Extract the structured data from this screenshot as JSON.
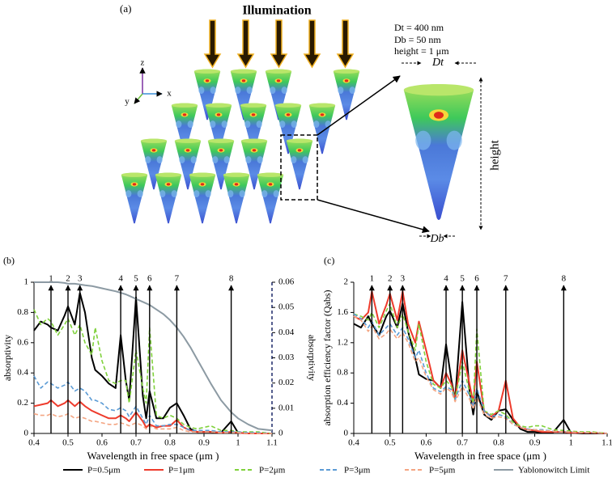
{
  "diagram": {
    "label": "(a)",
    "title": "Illumination",
    "dt_spec": "Dt = 400 nm",
    "db_spec": "Db = 50 nm",
    "height_spec": "height = 1 μm",
    "dt_label": "Dt",
    "db_label": "Db",
    "height_label": "height",
    "axis_x": "x",
    "axis_y": "y",
    "axis_z": "z"
  },
  "chart_data": [
    {
      "type": "line",
      "panel": "(b)",
      "xlabel": "Wavelength in free space (μm )",
      "ylabel": "absorptivity",
      "y2label": "absorptivity",
      "xlim": [
        0.4,
        1.1
      ],
      "xticks": [
        0.4,
        0.5,
        0.6,
        0.7,
        0.8,
        0.9,
        1,
        1.1
      ],
      "ylim": [
        0,
        1
      ],
      "yticks": [
        0,
        0.2,
        0.4,
        0.6,
        0.8,
        1
      ],
      "y2lim": [
        0,
        0.06
      ],
      "y2ticks": [
        0,
        0.01,
        0.02,
        0.03,
        0.04,
        0.05,
        0.06
      ],
      "annotations": [
        {
          "x": 0.45,
          "label": "1"
        },
        {
          "x": 0.5,
          "label": "2"
        },
        {
          "x": 0.535,
          "label": "3"
        },
        {
          "x": 0.655,
          "label": "4"
        },
        {
          "x": 0.7,
          "label": "5"
        },
        {
          "x": 0.74,
          "label": "6"
        },
        {
          "x": 0.82,
          "label": "7"
        },
        {
          "x": 0.98,
          "label": "8"
        }
      ],
      "x": [
        0.4,
        0.42,
        0.44,
        0.45,
        0.47,
        0.49,
        0.5,
        0.52,
        0.535,
        0.55,
        0.57,
        0.58,
        0.6,
        0.62,
        0.64,
        0.655,
        0.67,
        0.68,
        0.7,
        0.72,
        0.73,
        0.74,
        0.76,
        0.78,
        0.8,
        0.82,
        0.84,
        0.86,
        0.88,
        0.9,
        0.92,
        0.95,
        0.98,
        1.0,
        1.03,
        1.06,
        1.1
      ],
      "series": [
        {
          "name": "P=0.5μm",
          "color": "#000000",
          "dashed": false,
          "values": [
            0.68,
            0.74,
            0.72,
            0.7,
            0.68,
            0.78,
            0.84,
            0.72,
            0.93,
            0.8,
            0.5,
            0.42,
            0.38,
            0.33,
            0.3,
            0.65,
            0.35,
            0.22,
            0.9,
            0.25,
            0.1,
            0.28,
            0.1,
            0.1,
            0.17,
            0.2,
            0.12,
            0.03,
            0.01,
            0.01,
            0.01,
            0.005,
            0.08,
            0.005,
            0,
            0,
            0
          ]
        },
        {
          "name": "P=1μm",
          "color": "#ee3b2c",
          "dashed": false,
          "values": [
            0.18,
            0.19,
            0.2,
            0.22,
            0.18,
            0.2,
            0.22,
            0.18,
            0.21,
            0.18,
            0.15,
            0.14,
            0.12,
            0.1,
            0.1,
            0.12,
            0.1,
            0.08,
            0.14,
            0.08,
            0.04,
            0.06,
            0.04,
            0.05,
            0.05,
            0.09,
            0.04,
            0.02,
            0.01,
            0.01,
            0.01,
            0.005,
            0.01,
            0.005,
            0,
            0,
            0
          ]
        },
        {
          "name": "P=2μm",
          "color": "#7fd13b",
          "dashed": true,
          "values": [
            0.82,
            0.72,
            0.76,
            0.74,
            0.65,
            0.72,
            0.76,
            0.65,
            0.72,
            0.6,
            0.52,
            0.7,
            0.48,
            0.35,
            0.33,
            0.35,
            0.35,
            0.2,
            0.55,
            0.3,
            0.2,
            0.7,
            0.12,
            0.1,
            0.12,
            0.1,
            0.06,
            0.04,
            0.03,
            0.04,
            0.05,
            0.02,
            0.02,
            0.01,
            0.01,
            0.01,
            0
          ]
        },
        {
          "name": "P=3μm",
          "color": "#5b9bd5",
          "dashed": true,
          "values": [
            0.38,
            0.3,
            0.34,
            0.33,
            0.3,
            0.32,
            0.34,
            0.28,
            0.3,
            0.28,
            0.22,
            0.22,
            0.2,
            0.16,
            0.15,
            0.17,
            0.15,
            0.11,
            0.18,
            0.1,
            0.06,
            0.12,
            0.05,
            0.05,
            0.06,
            0.06,
            0.04,
            0.02,
            0.02,
            0.02,
            0.02,
            0.01,
            0.01,
            0.01,
            0.005,
            0.005,
            0
          ]
        },
        {
          "name": "P=5μm",
          "color": "#f4a582",
          "dashed": true,
          "values": [
            0.13,
            0.12,
            0.12,
            0.13,
            0.11,
            0.12,
            0.13,
            0.1,
            0.11,
            0.1,
            0.08,
            0.08,
            0.07,
            0.06,
            0.06,
            0.07,
            0.06,
            0.05,
            0.07,
            0.05,
            0.03,
            0.05,
            0.03,
            0.03,
            0.03,
            0.04,
            0.02,
            0.01,
            0.01,
            0.01,
            0.01,
            0.005,
            0.005,
            0.005,
            0,
            0,
            0
          ]
        },
        {
          "name": "Yablonowitch Limit",
          "color": "#8c9aa3",
          "dashed": false,
          "values": [
            1.0,
            1.0,
            1.0,
            1.0,
            1.0,
            0.995,
            0.99,
            0.99,
            0.985,
            0.98,
            0.975,
            0.97,
            0.96,
            0.95,
            0.94,
            0.93,
            0.92,
            0.91,
            0.89,
            0.87,
            0.86,
            0.85,
            0.82,
            0.79,
            0.75,
            0.7,
            0.64,
            0.57,
            0.49,
            0.41,
            0.33,
            0.22,
            0.14,
            0.1,
            0.06,
            0.03,
            0.02
          ]
        }
      ]
    },
    {
      "type": "line",
      "panel": "(c)",
      "xlabel": "Wavelength in free space (μm )",
      "ylabel": "absorption efficiency factor (Qabs)",
      "xlim": [
        0.4,
        1.1
      ],
      "xticks": [
        0.4,
        0.5,
        0.6,
        0.7,
        0.8,
        0.9,
        1,
        1.1
      ],
      "ylim": [
        0,
        2
      ],
      "yticks": [
        0,
        0.4,
        0.8,
        1.2,
        1.6,
        2
      ],
      "annotations": [
        {
          "x": 0.45,
          "label": "1"
        },
        {
          "x": 0.5,
          "label": "2"
        },
        {
          "x": 0.535,
          "label": "3"
        },
        {
          "x": 0.655,
          "label": "4"
        },
        {
          "x": 0.7,
          "label": "5"
        },
        {
          "x": 0.74,
          "label": "6"
        },
        {
          "x": 0.82,
          "label": "7"
        },
        {
          "x": 0.98,
          "label": "8"
        }
      ],
      "x": [
        0.4,
        0.42,
        0.44,
        0.45,
        0.47,
        0.49,
        0.5,
        0.52,
        0.535,
        0.55,
        0.57,
        0.58,
        0.6,
        0.62,
        0.64,
        0.655,
        0.67,
        0.68,
        0.7,
        0.72,
        0.73,
        0.74,
        0.76,
        0.78,
        0.8,
        0.82,
        0.84,
        0.86,
        0.88,
        0.9,
        0.92,
        0.95,
        0.98,
        1.0,
        1.03,
        1.06,
        1.1
      ],
      "series": [
        {
          "color": "#000000",
          "dashed": false,
          "values": [
            1.45,
            1.4,
            1.55,
            1.45,
            1.3,
            1.55,
            1.62,
            1.4,
            1.72,
            1.35,
            1.0,
            0.78,
            0.72,
            0.7,
            0.6,
            1.18,
            0.7,
            0.45,
            1.74,
            0.55,
            0.25,
            0.56,
            0.25,
            0.18,
            0.3,
            0.32,
            0.18,
            0.06,
            0.02,
            0.02,
            0.01,
            0.01,
            0.18,
            0.01,
            0,
            0,
            0
          ]
        },
        {
          "color": "#ee3b2c",
          "dashed": false,
          "values": [
            1.55,
            1.5,
            1.6,
            1.88,
            1.45,
            1.7,
            1.85,
            1.5,
            1.88,
            1.45,
            1.2,
            1.48,
            1.1,
            0.7,
            0.6,
            0.8,
            0.65,
            0.45,
            1.1,
            0.65,
            0.4,
            0.95,
            0.3,
            0.22,
            0.3,
            0.7,
            0.2,
            0.08,
            0.05,
            0.04,
            0.02,
            0.02,
            0.02,
            0.01,
            0.01,
            0.01,
            0
          ]
        },
        {
          "color": "#7fd13b",
          "dashed": true,
          "values": [
            1.58,
            1.55,
            1.5,
            1.6,
            1.4,
            1.62,
            1.72,
            1.4,
            1.58,
            1.35,
            1.1,
            1.45,
            0.95,
            0.65,
            0.6,
            0.7,
            0.62,
            0.45,
            0.95,
            0.55,
            0.4,
            1.38,
            0.3,
            0.25,
            0.3,
            0.25,
            0.15,
            0.1,
            0.08,
            0.1,
            0.1,
            0.05,
            0.04,
            0.03,
            0.02,
            0.02,
            0
          ]
        },
        {
          "color": "#5b9bd5",
          "dashed": true,
          "values": [
            1.58,
            1.52,
            1.4,
            1.48,
            1.3,
            1.4,
            1.45,
            1.3,
            1.4,
            1.25,
            1.0,
            1.1,
            0.8,
            0.6,
            0.55,
            0.62,
            0.58,
            0.45,
            0.7,
            0.5,
            0.35,
            0.6,
            0.3,
            0.22,
            0.25,
            0.22,
            0.12,
            0.08,
            0.06,
            0.05,
            0.05,
            0.03,
            0.02,
            0.02,
            0.01,
            0.01,
            0
          ]
        },
        {
          "color": "#f4a582",
          "dashed": true,
          "values": [
            1.55,
            1.5,
            1.35,
            1.42,
            1.25,
            1.32,
            1.38,
            1.25,
            1.33,
            1.2,
            0.95,
            1.0,
            0.75,
            0.58,
            0.52,
            0.6,
            0.55,
            0.42,
            0.62,
            0.45,
            0.32,
            0.48,
            0.25,
            0.2,
            0.22,
            0.2,
            0.12,
            0.08,
            0.05,
            0.05,
            0.04,
            0.03,
            0.02,
            0.02,
            0.01,
            0.01,
            0
          ]
        }
      ]
    }
  ]
}
